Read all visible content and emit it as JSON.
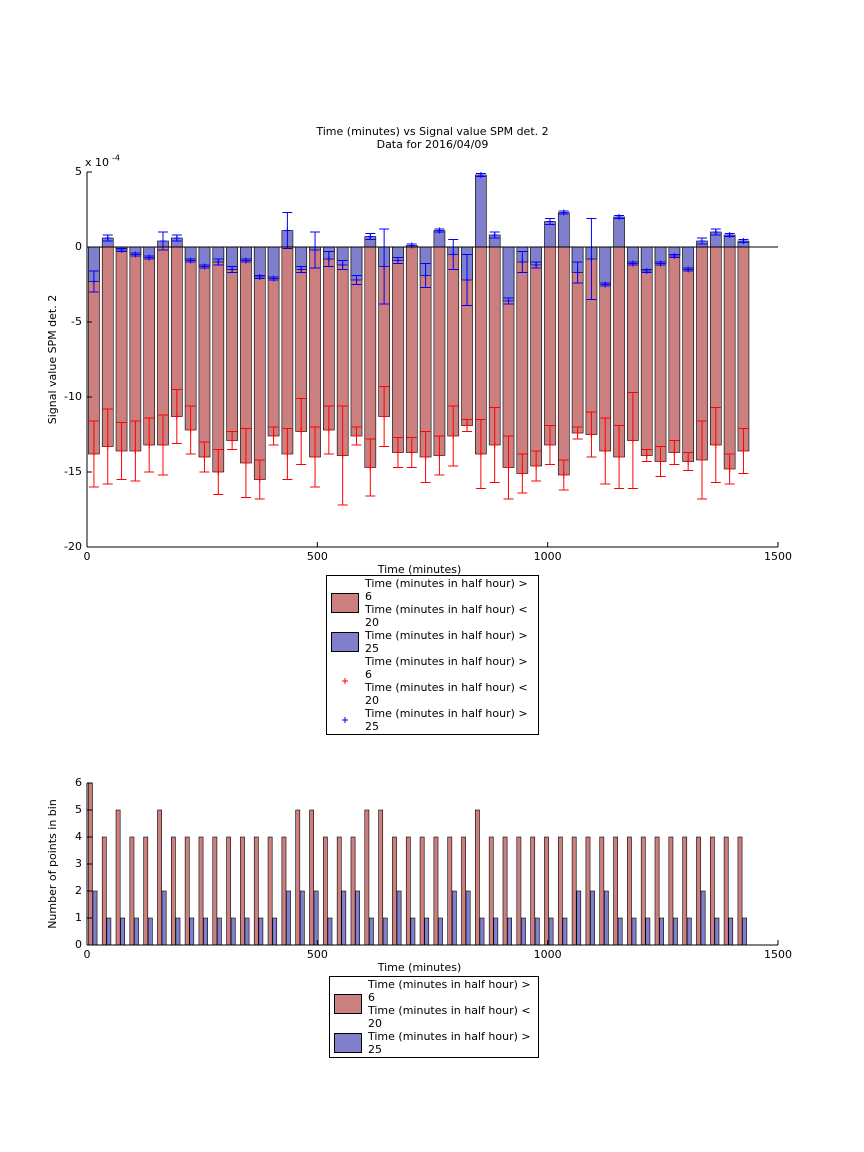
{
  "chart_data": [
    {
      "type": "bar",
      "title": "Time (minutes) vs Signal value SPM det. 2",
      "subtitle": "Data for 2016/04/09",
      "xlabel": "Time (minutes)",
      "ylabel": "Signal value SPM det. 2",
      "y_multiplier": "x 10",
      "y_multiplier_exponent": "-4",
      "x": [
        15,
        45,
        75,
        105,
        135,
        165,
        195,
        225,
        255,
        285,
        315,
        345,
        375,
        405,
        435,
        465,
        495,
        525,
        555,
        585,
        615,
        645,
        675,
        705,
        735,
        765,
        795,
        825,
        855,
        885,
        915,
        945,
        975,
        1005,
        1035,
        1065,
        1095,
        1125,
        1155,
        1185,
        1215,
        1245,
        1275,
        1305,
        1335,
        1365,
        1395,
        1425
      ],
      "series": [
        {
          "name": "Time (minutes in half hour) > 6\nTime (minutes in half hour) < 20",
          "color": "#cc7f7f",
          "error_color": "#ff0000",
          "error_name": "Time (minutes in half hour) > 6\nTime (minutes in half hour) < 20",
          "values": [
            -13.8,
            -13.3,
            -13.6,
            -13.6,
            -13.2,
            -13.2,
            -11.3,
            -12.2,
            -14,
            -15,
            -12.9,
            -14.4,
            -15.5,
            -12.6,
            -13.8,
            -12.3,
            -14,
            -12.2,
            -13.9,
            -12.6,
            -14.7,
            -11.3,
            -13.7,
            -13.7,
            -14,
            -13.9,
            -12.6,
            -11.9,
            -13.8,
            -13.2,
            -14.7,
            -15.1,
            -14.6,
            -13.2,
            -15.2,
            -12.4,
            -12.5,
            -13.6,
            -14,
            -12.9,
            -13.9,
            -14.3,
            -13.7,
            -14.3,
            -14.2,
            -13.2,
            -14.8,
            -13.6
          ],
          "errors": [
            2.2,
            2.5,
            1.9,
            2.0,
            1.8,
            2.0,
            1.8,
            1.6,
            1.0,
            1.5,
            0.6,
            2.3,
            1.3,
            0.6,
            1.7,
            2.2,
            2.0,
            1.6,
            3.3,
            0.6,
            1.9,
            2.0,
            1.0,
            1.0,
            1.7,
            1.3,
            2.0,
            0.4,
            2.3,
            2.5,
            2.1,
            1.3,
            1.0,
            1.3,
            1.0,
            0.4,
            1.5,
            2.2,
            2.1,
            3.2,
            0.4,
            1.0,
            0.8,
            0.6,
            2.6,
            2.5,
            1.0,
            1.5
          ]
        },
        {
          "name": "Time (minutes in half hour) > 25",
          "color": "#7f7fcc",
          "error_color": "#0000ff",
          "error_name": "Time (minutes in half hour) > 25",
          "values": [
            -2.3,
            0.6,
            -0.2,
            -0.5,
            -0.7,
            0.4,
            0.6,
            -0.9,
            -1.3,
            -1.0,
            -1.5,
            -0.9,
            -2.0,
            -2.1,
            1.1,
            -1.5,
            -0.2,
            -0.8,
            -1.2,
            -2.2,
            0.7,
            -1.3,
            -0.9,
            0.1,
            -1.9,
            1.1,
            -0.5,
            -2.2,
            4.8,
            0.8,
            -3.6,
            -1.0,
            -1.2,
            1.7,
            2.3,
            -1.7,
            -0.8,
            -2.5,
            2.0,
            -1.1,
            -1.6,
            -1.1,
            -0.6,
            -1.5,
            0.4,
            1.0,
            0.8,
            0.4
          ],
          "errors": [
            0.7,
            0.2,
            0.1,
            0.1,
            0.1,
            0.6,
            0.2,
            0.1,
            0.1,
            0.2,
            0.2,
            0.1,
            0.1,
            0.1,
            1.2,
            0.2,
            1.2,
            0.5,
            0.3,
            0.3,
            0.2,
            2.5,
            0.2,
            0.1,
            0.8,
            0.1,
            1.0,
            1.7,
            0.1,
            0.2,
            0.2,
            0.7,
            0.2,
            0.2,
            0.1,
            0.7,
            2.7,
            0.1,
            0.1,
            0.1,
            0.1,
            0.1,
            0.1,
            0.1,
            0.2,
            0.2,
            0.1,
            0.1
          ]
        }
      ],
      "xlim": [
        0,
        1500
      ],
      "xticks": [
        0,
        500,
        1000,
        1500
      ],
      "ylim": [
        -20,
        5
      ],
      "yticks": [
        -20,
        -15,
        -10,
        -5,
        0,
        5
      ]
    },
    {
      "type": "bar",
      "xlabel": "Time (minutes)",
      "ylabel": "Number of points in bin",
      "x": [
        0,
        30,
        60,
        90,
        120,
        150,
        180,
        210,
        240,
        270,
        300,
        330,
        360,
        390,
        420,
        450,
        480,
        510,
        540,
        570,
        600,
        630,
        660,
        690,
        720,
        750,
        780,
        810,
        840,
        870,
        900,
        930,
        960,
        990,
        1020,
        1050,
        1080,
        1110,
        1140,
        1170,
        1200,
        1230,
        1260,
        1290,
        1320,
        1350,
        1380,
        1410
      ],
      "series": [
        {
          "name": "Time (minutes in half hour) > 6\nTime (minutes in half hour) < 20",
          "color": "#cc7f7f",
          "values": [
            6,
            4,
            5,
            4,
            4,
            5,
            4,
            4,
            4,
            4,
            4,
            4,
            4,
            4,
            4,
            5,
            5,
            4,
            4,
            4,
            5,
            5,
            4,
            4,
            4,
            4,
            4,
            4,
            5,
            4,
            4,
            4,
            4,
            4,
            4,
            4,
            4,
            4,
            4,
            4,
            4,
            4,
            4,
            4,
            4,
            4,
            4,
            4
          ]
        },
        {
          "name": "Time (minutes in half hour) > 25",
          "color": "#7f7fcc",
          "values": [
            2,
            1,
            1,
            1,
            1,
            2,
            1,
            1,
            1,
            1,
            1,
            1,
            1,
            1,
            2,
            2,
            2,
            1,
            2,
            2,
            1,
            1,
            2,
            1,
            1,
            1,
            2,
            2,
            1,
            1,
            1,
            1,
            1,
            1,
            1,
            2,
            2,
            2,
            1,
            1,
            1,
            1,
            1,
            1,
            2,
            1,
            1,
            1
          ]
        }
      ],
      "xlim": [
        0,
        1500
      ],
      "xticks": [
        0,
        500,
        1000,
        1500
      ],
      "ylim": [
        0,
        6
      ],
      "yticks": [
        0,
        1,
        2,
        3,
        4,
        5,
        6
      ]
    }
  ]
}
